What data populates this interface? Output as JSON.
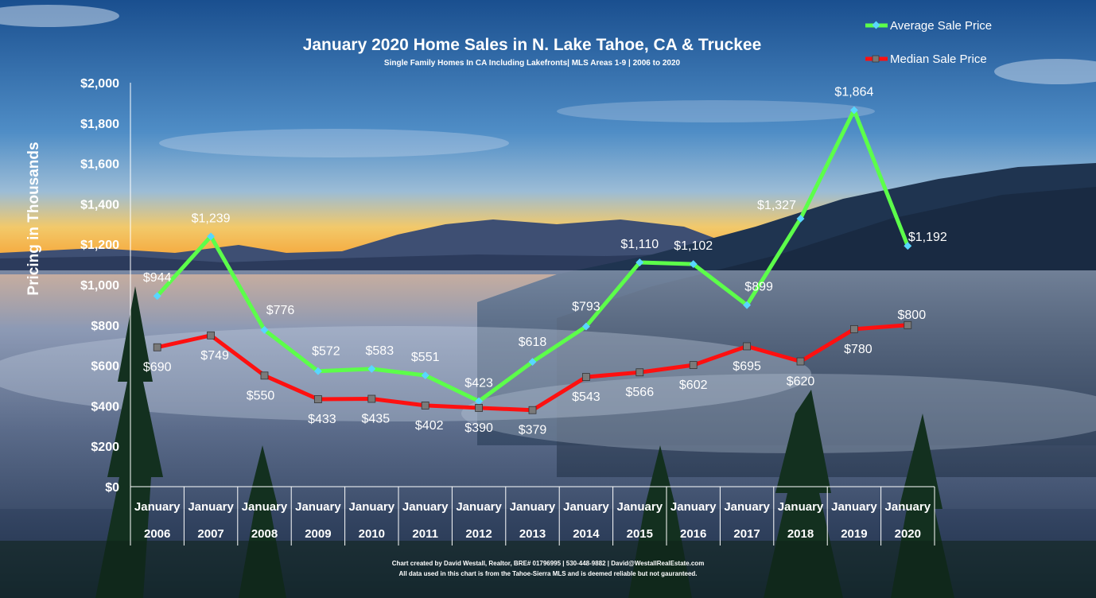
{
  "chart_data": {
    "type": "line",
    "title": "January 2020 Home Sales in N. Lake Tahoe, CA & Truckee",
    "subtitle": "Single Family Homes In  CA Including  Lakefronts| MLS Areas 1-9  | 2006 to  2020",
    "ylabel": "Pricing in Thousands",
    "xlabel": "",
    "ylim": [
      0,
      2000
    ],
    "yticks": [
      "$2,000",
      "$1,800",
      "$1,600",
      "$1,400",
      "$1,200",
      "$1,000",
      "$800",
      "$600",
      "$400",
      "$200",
      "$0"
    ],
    "ytick_values": [
      2000,
      1800,
      1600,
      1400,
      1200,
      1000,
      800,
      600,
      400,
      200,
      0
    ],
    "categories_month": [
      "January",
      "January",
      "January",
      "January",
      "January",
      "January",
      "January",
      "January",
      "January",
      "January",
      "January",
      "January",
      "January",
      "January",
      "January"
    ],
    "categories_year": [
      "2006",
      "2007",
      "2008",
      "2009",
      "2010",
      "2011",
      "2012",
      "2013",
      "2014",
      "2015",
      "2016",
      "2017",
      "2018",
      "2019",
      "2020"
    ],
    "grid": false,
    "legend_position": "top-right",
    "series": [
      {
        "name": "Average Sale Price",
        "color": "#5cff4a",
        "marker": "diamond",
        "values": [
          944,
          1239,
          776,
          572,
          583,
          551,
          423,
          618,
          793,
          1110,
          1102,
          899,
          1327,
          1864,
          1192
        ],
        "labels": [
          "$944",
          "$1,239",
          "$776",
          "$572",
          "$583",
          "$551",
          "$423",
          "$618",
          "$793",
          "$1,110",
          "$1,102",
          "$899",
          "$1,327",
          "$1,864",
          "$1,192"
        ]
      },
      {
        "name": "Median Sale Price",
        "color": "#ff1010",
        "marker": "square",
        "values": [
          690,
          749,
          550,
          433,
          435,
          402,
          390,
          379,
          543,
          566,
          602,
          695,
          620,
          780,
          800
        ],
        "labels": [
          "$690",
          "$749",
          "$550",
          "$433",
          "$435",
          "$402",
          "$390",
          "$379",
          "$543",
          "$566",
          "$602",
          "$695",
          "$620",
          "$780",
          "$800"
        ]
      }
    ]
  },
  "credit": {
    "line1": "Chart created by David Westall, Realtor, BRE# 01796995 | 530-448-9882 | David@WestallRealEstate.com",
    "line2": "All data used in this chart is from the Tahoe-Sierra MLS and is deemed reliable but  not gauranteed."
  }
}
